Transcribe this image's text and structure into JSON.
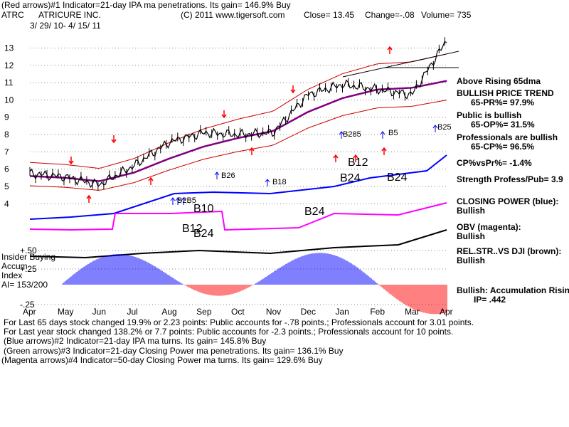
{
  "header": {
    "line1": "(Red arrows)#1 Indicator=21-day IPA ma penetrations. Its gain= 146.9% Buy",
    "symbol": "ATRC",
    "company": "ATRICURE INC.",
    "source": "(C) 2011 www.tigersoft.com",
    "close": "Close= 13.45",
    "change": "Change=-.08",
    "volume": "Volume= 735",
    "date_range": "3/ 29/ 10- 4/ 15/ 11"
  },
  "right_panel": {
    "above_rising": "Above Rising 65dma",
    "trend_title": "BULLISH PRICE TREND",
    "pr": "65-PR%= 97.9%",
    "public_title": "Public is bullish",
    "op": "65-OP%= 31.5%",
    "pros_title": "Professionals are bullish",
    "cp": "65-CP%= 96.5%",
    "cpvspr": "CP%vsPr%= -1.4%",
    "strength": "Strength Profess/Pub= 3.9",
    "closing_power_title": "CLOSING POWER (blue):",
    "closing_power_value": "Bullish",
    "obv_title": "OBV (magenta):",
    "obv_value": "Bullish",
    "relstr_title": "REL.STR..VS DJI (brown):",
    "relstr_value": "Bullish",
    "accum_title": "Bullish: Accumulation Rising",
    "ip": "IP= .442"
  },
  "left_panel": {
    "insider1": "Insider Buying",
    "insider2": "Accum",
    "insider3": "Index",
    "ai": "AI= 153/200"
  },
  "footer": {
    "l1": "For Last 65 days stock changed  19.9% or  2.23 points:  Public accounts for -.78 points.;  Professionals account for  3.01 points.",
    "l2": "For Last year stock changed  138.2% or  7.7 points:  Public accounts for -2.3 points.;  Professionals account for  10 points.",
    "l3": "(Blue arrows)#2 Indicator=21-day IPA ma turns. Its gain= 145.8% Buy",
    "l4": "(Green arrows)#3 Indicator=21-day Closing Power ma penetrations. Its gain= 136.1% Buy",
    "l5": "(Magenta arrows)#4 Indicator=50-day Closing Power ma turns. Its gain= 129.6% Buy"
  },
  "annotations": {
    "b26": "B26",
    "b18": "B18",
    "b12a": "B12",
    "b24a": "B24",
    "b24b": "B24",
    "b25": "B25",
    "b5": "B5",
    "b285": "B285",
    "b10": "B10",
    "b12b": "B12",
    "b24c": "B24",
    "b24d": "B24",
    "bcluster": "B2B5"
  },
  "colors": {
    "price": "#000000",
    "ma": "#800080",
    "band": "#cc0000",
    "closing_power": "#0000ff",
    "obv": "#ff00ff",
    "relstr": "#000000",
    "accum_pos": "#0000ff",
    "accum_neg": "#ff0000"
  },
  "chart_data": {
    "type": "line",
    "x": [
      "Apr",
      "May",
      "Jun",
      "Jul",
      "Aug",
      "Sep",
      "Oct",
      "Nov",
      "Dec",
      "Jan",
      "Feb",
      "Mar",
      "Apr"
    ],
    "y_ticks": [
      4,
      5,
      6,
      7,
      8,
      9,
      10,
      11,
      12,
      13
    ],
    "accum_ticks": [
      "+.50",
      "+.25",
      "-.25"
    ],
    "ylim": [
      3.6,
      13.8
    ],
    "series": [
      {
        "values": [
          5.75,
          5.55,
          5.1,
          6.2,
          7.55,
          8.1,
          8.0,
          8.1,
          10.3,
          10.9,
          10.6,
          10.3,
          13.45
        ]
      },
      {
        "values": [
          5.6,
          5.5,
          5.3,
          5.8,
          6.6,
          7.3,
          7.8,
          8.2,
          9.3,
          10.1,
          10.6,
          10.7,
          11.1
        ]
      }
    ]
  }
}
